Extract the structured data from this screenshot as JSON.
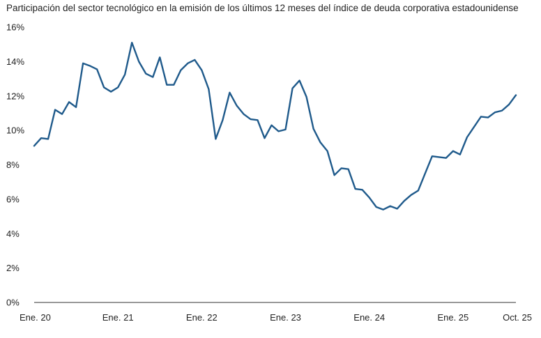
{
  "chart_data": {
    "type": "line",
    "title": "Participación del sector tecnológico en la emisión de los últimos 12 meses del índice de deuda corporativa estadounidense",
    "xlabel": "",
    "ylabel": "",
    "ylim": [
      0,
      16
    ],
    "yticks": [
      "0%",
      "2%",
      "4%",
      "6%",
      "8%",
      "10%",
      "12%",
      "14%",
      "16%"
    ],
    "xticks": [
      {
        "label": "Ene. 20",
        "month": 0
      },
      {
        "label": "Ene. 21",
        "month": 12
      },
      {
        "label": "Ene. 22",
        "month": 24
      },
      {
        "label": "Ene. 23",
        "month": 36
      },
      {
        "label": "Ene. 24",
        "month": 48
      },
      {
        "label": "Ene. 25",
        "month": 60
      },
      {
        "label": "Oct. 25",
        "month": 69
      }
    ],
    "grid": false,
    "line_color": "#1f5a8b",
    "series": [
      {
        "name": "",
        "values": [
          9.1,
          9.55,
          9.5,
          11.2,
          10.95,
          11.65,
          11.35,
          13.9,
          13.75,
          13.55,
          12.5,
          12.25,
          12.5,
          13.25,
          15.1,
          14.0,
          13.3,
          13.1,
          14.25,
          12.65,
          12.65,
          13.5,
          13.9,
          14.1,
          13.5,
          12.4,
          9.5,
          10.6,
          12.2,
          11.45,
          10.95,
          10.65,
          10.6,
          9.55,
          10.3,
          9.95,
          10.05,
          12.45,
          12.9,
          11.95,
          10.1,
          9.3,
          8.8,
          7.4,
          7.8,
          7.75,
          6.6,
          6.55,
          6.1,
          5.55,
          5.4,
          5.6,
          5.45,
          5.9,
          6.25,
          6.5,
          7.5,
          8.5,
          8.45,
          8.4,
          8.8,
          8.6,
          9.6,
          10.2,
          10.8,
          10.75,
          11.05,
          11.15,
          11.5,
          12.05
        ]
      }
    ]
  }
}
